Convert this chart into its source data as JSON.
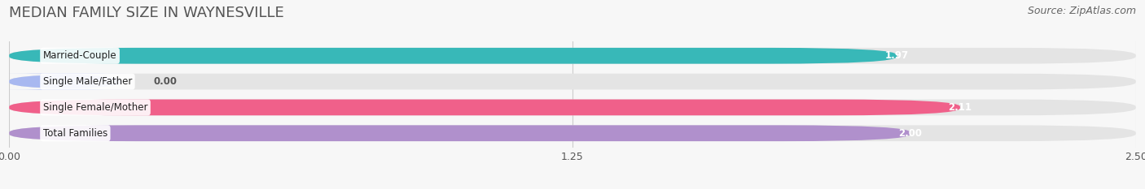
{
  "title": "MEDIAN FAMILY SIZE IN WAYNESVILLE",
  "source": "Source: ZipAtlas.com",
  "categories": [
    "Married-Couple",
    "Single Male/Father",
    "Single Female/Mother",
    "Total Families"
  ],
  "values": [
    1.97,
    0.0,
    2.11,
    2.0
  ],
  "bar_colors": [
    "#38b8b8",
    "#a8b8f0",
    "#f0608a",
    "#b090cc"
  ],
  "xlim_max": 2.5,
  "xticks": [
    0.0,
    1.25,
    2.5
  ],
  "xtick_labels": [
    "0.00",
    "1.25",
    "2.50"
  ],
  "background_color": "#f7f7f7",
  "bar_background": "#e4e4e4",
  "title_fontsize": 13,
  "source_fontsize": 9,
  "bar_height": 0.62,
  "bar_gap": 1.0,
  "figsize": [
    14.06,
    2.33
  ],
  "dpi": 100
}
